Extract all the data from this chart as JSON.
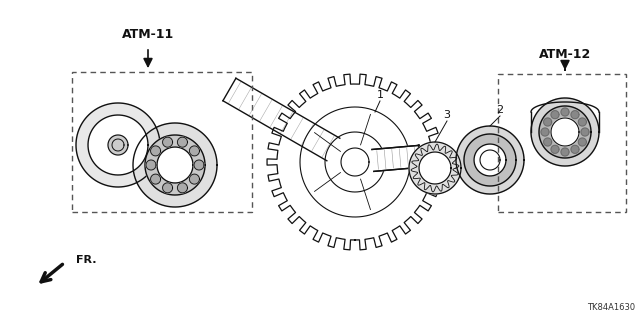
{
  "bg_color": "#ffffff",
  "line_color": "#111111",
  "title_code": "TK84A1630",
  "atm11_label": "ATM-11",
  "atm12_label": "ATM-12",
  "fr_label": "FR.",
  "figsize": [
    6.4,
    3.2
  ],
  "dpi": 100
}
